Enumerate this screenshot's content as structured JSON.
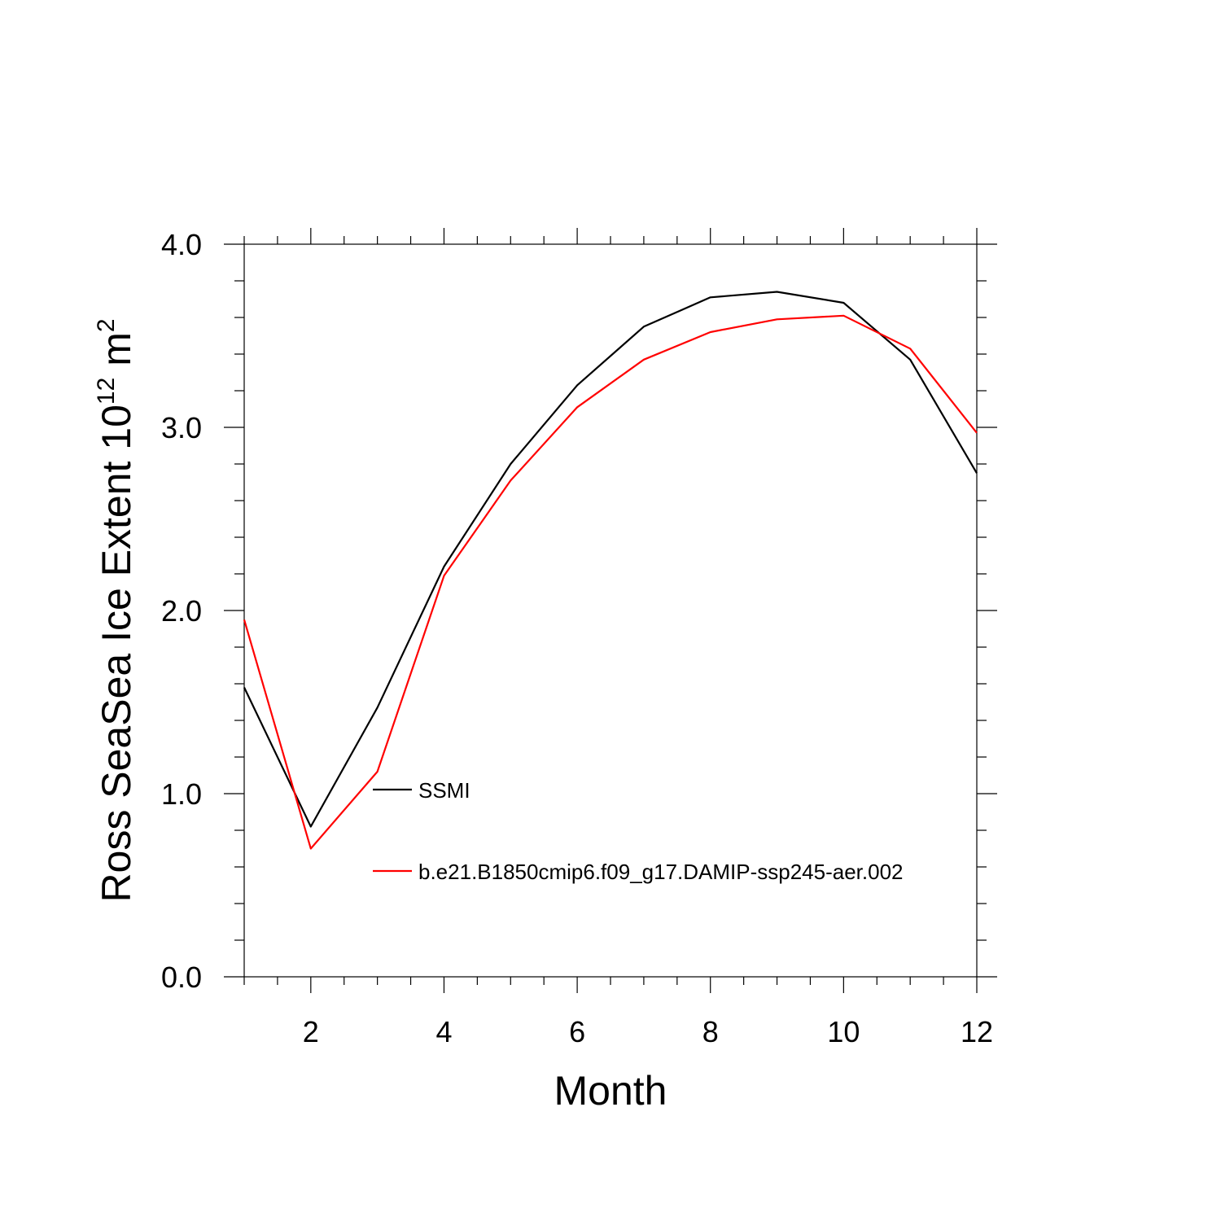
{
  "chart_data": {
    "type": "line",
    "xlabel": "Month",
    "ylabel": {
      "prefix": "Ross SeaSea Ice Extent 10",
      "exponent": "12",
      "unit": " m",
      "unit_exponent": "2"
    },
    "xlim": [
      1,
      12
    ],
    "ylim": [
      0.0,
      4.0
    ],
    "xticks": [
      2,
      4,
      6,
      8,
      10,
      12
    ],
    "xtick_labels": [
      "2",
      "4",
      "6",
      "8",
      "10",
      "12"
    ],
    "yticks": [
      0.0,
      1.0,
      2.0,
      3.0,
      4.0
    ],
    "ytick_labels": [
      "0.0",
      "1.0",
      "2.0",
      "3.0",
      "4.0"
    ],
    "x": [
      1,
      2,
      3,
      4,
      5,
      6,
      7,
      8,
      9,
      10,
      11,
      12
    ],
    "series": [
      {
        "name": "SSMI",
        "color": "#000000",
        "values": [
          1.58,
          0.82,
          1.47,
          2.24,
          2.8,
          3.23,
          3.55,
          3.71,
          3.74,
          3.68,
          3.37,
          2.75
        ]
      },
      {
        "name": "b.e21.B1850cmip6.f09_g17.DAMIP-ssp245-aer.002",
        "color": "#ff0000",
        "values": [
          1.95,
          0.7,
          1.12,
          2.19,
          2.71,
          3.11,
          3.37,
          3.52,
          3.59,
          3.61,
          3.43,
          2.97
        ]
      }
    ],
    "grid": false,
    "legend": "inside-lower-middle"
  }
}
